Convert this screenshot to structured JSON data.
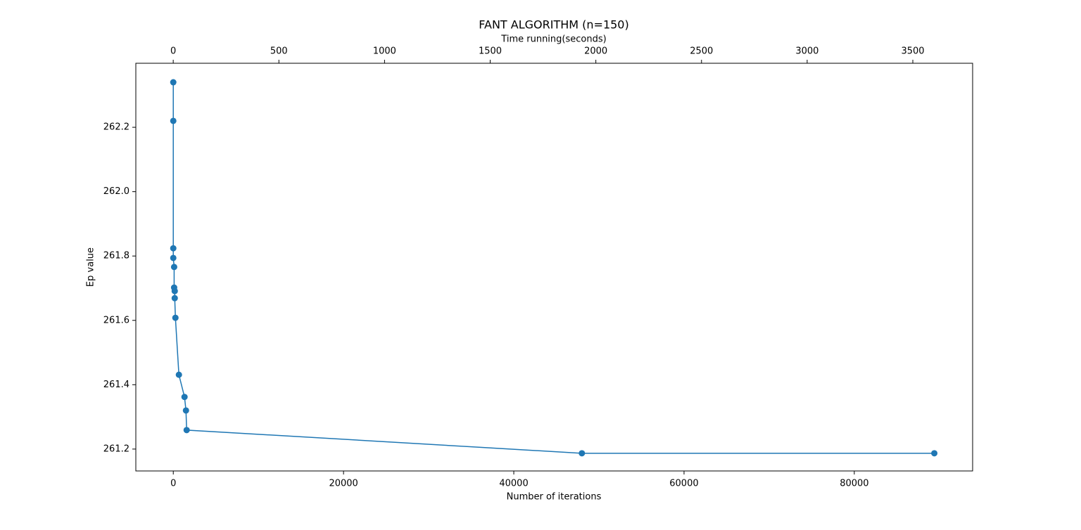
{
  "chart_data": {
    "type": "line",
    "title": "FANT ALGORITHM (n=150)",
    "x_label": "Number of iterations",
    "x2_label": "Time running(seconds)",
    "y_label": "Ep value",
    "x": [
      0,
      0,
      0,
      0,
      100,
      100,
      170,
      170,
      250,
      660,
      1320,
      1490,
      1570,
      48000,
      89400
    ],
    "series": [
      {
        "color": "#1f77b4",
        "values": [
          262.34,
          262.22,
          261.824,
          261.794,
          261.766,
          261.702,
          261.691,
          261.669,
          261.608,
          261.431,
          261.362,
          261.32,
          261.259,
          261.187,
          261.187
        ]
      }
    ],
    "xlim": [
      -4400,
      93900
    ],
    "xticks": [
      0,
      20000,
      40000,
      60000,
      80000
    ],
    "x2lim": [
      -177,
      3783
    ],
    "x2ticks": [
      0,
      500,
      1000,
      1500,
      2000,
      2500,
      3000,
      3500
    ],
    "ylim": [
      261.132,
      262.399
    ],
    "yticks": [
      261.2,
      261.4,
      261.6,
      261.8,
      {
        "value": 262.0,
        "label": "262.0"
      },
      262.2
    ],
    "grid": false
  }
}
